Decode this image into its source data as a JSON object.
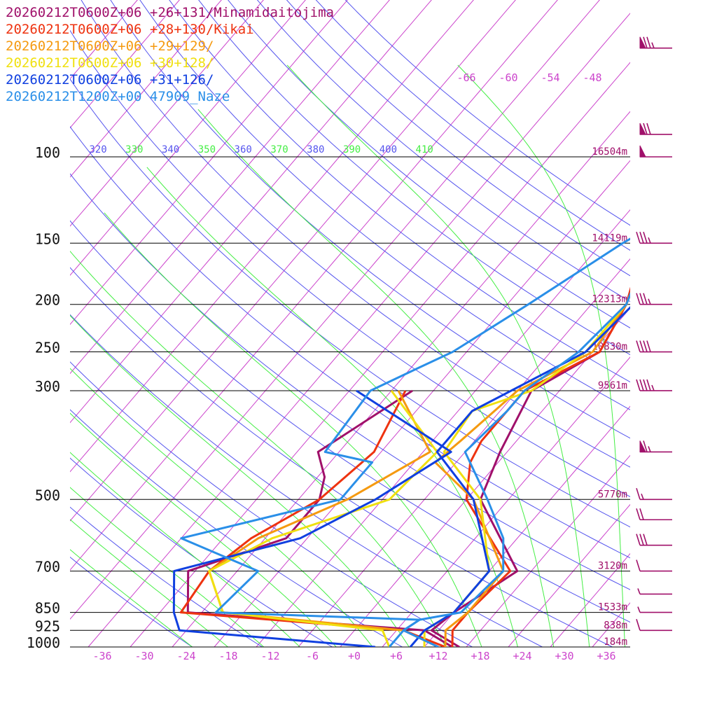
{
  "chart_data": {
    "type": "line",
    "subtype": "skew-T log-P sounding",
    "xlabel": "",
    "ylabel": "",
    "x_unit": "°C",
    "pressure_levels": [
      100,
      150,
      200,
      250,
      300,
      500,
      700,
      850,
      925,
      1000
    ],
    "pressure_labels": [
      "100",
      "150",
      "200",
      "250",
      "300",
      "500",
      "700",
      "850",
      "925",
      "1000"
    ],
    "height_labels": [
      {
        "p": 100,
        "text": "16504m"
      },
      {
        "p": 150,
        "text": "14119m"
      },
      {
        "p": 200,
        "text": "12313m"
      },
      {
        "p": 250,
        "text": "10830m"
      },
      {
        "p": 300,
        "text": "9561m"
      },
      {
        "p": 500,
        "text": "5770m"
      },
      {
        "p": 700,
        "text": "3120m"
      },
      {
        "p": 850,
        "text": "1533m"
      },
      {
        "p": 925,
        "text": "838m"
      },
      {
        "p": 1000,
        "text": "184m"
      }
    ],
    "temp_ticks": [
      -36,
      -30,
      -24,
      -18,
      -12,
      -6,
      0,
      6,
      12,
      18,
      24,
      30,
      36
    ],
    "temp_tick_labels": [
      "-36",
      "-30",
      "-24",
      "-18",
      "-12",
      "-6",
      "+0",
      "+6",
      "+12",
      "+18",
      "+24",
      "+30",
      "+36"
    ],
    "upper_iso_labels": [
      "-66",
      "-60",
      "-54",
      "-48"
    ],
    "theta_labels": [
      {
        "text": "320",
        "color": "#5555ee"
      },
      {
        "text": "330",
        "color": "#44ee44"
      },
      {
        "text": "340",
        "color": "#5555ee"
      },
      {
        "text": "350",
        "color": "#44ee44"
      },
      {
        "text": "360",
        "color": "#5555ee"
      },
      {
        "text": "370",
        "color": "#44ee44"
      },
      {
        "text": "380",
        "color": "#5555ee"
      },
      {
        "text": "390",
        "color": "#44ee44"
      },
      {
        "text": "400",
        "color": "#5555ee"
      },
      {
        "text": "410",
        "color": "#44ee44"
      }
    ],
    "series": [
      {
        "name": "20260212T0600Z+06 +26+131/Minamidaitojima",
        "color": "#a0106a",
        "temperature": [
          [
            1000,
            15
          ],
          [
            925,
            9
          ],
          [
            850,
            10
          ],
          [
            700,
            14
          ],
          [
            500,
            0
          ],
          [
            400,
            -3
          ],
          [
            300,
            -6
          ],
          [
            250,
            -1
          ],
          [
            200,
            -3
          ],
          [
            150,
            -8
          ],
          [
            100,
            -10
          ],
          [
            80,
            3
          ],
          [
            70,
            24
          ]
        ],
        "dewpoint": [
          [
            1000,
            14
          ],
          [
            925,
            8
          ],
          [
            850,
            -28
          ],
          [
            700,
            -33
          ],
          [
            600,
            -23
          ],
          [
            500,
            -23
          ],
          [
            450,
            -25
          ],
          [
            400,
            -29
          ],
          [
            300,
            -23
          ]
        ]
      },
      {
        "name": "20260212T0600Z+06 +28+130/Kikai",
        "color": "#ee3310",
        "temperature": [
          [
            1000,
            14
          ],
          [
            925,
            12
          ],
          [
            850,
            12
          ],
          [
            700,
            13
          ],
          [
            500,
            -2
          ],
          [
            420,
            -6
          ],
          [
            380,
            -7
          ],
          [
            300,
            -7
          ],
          [
            250,
            -1
          ],
          [
            200,
            -3
          ],
          [
            150,
            -8
          ],
          [
            100,
            -8
          ],
          [
            80,
            8
          ],
          [
            70,
            27
          ]
        ],
        "dewpoint": [
          [
            1000,
            13
          ],
          [
            925,
            5
          ],
          [
            850,
            -29
          ],
          [
            700,
            -30
          ],
          [
            600,
            -28
          ],
          [
            500,
            -23
          ],
          [
            400,
            -21
          ],
          [
            300,
            -24
          ]
        ]
      },
      {
        "name": "20260212T0600Z+06 +29+129/",
        "color": "#f59a10",
        "temperature": [
          [
            1000,
            13
          ],
          [
            925,
            11
          ],
          [
            850,
            12
          ],
          [
            700,
            12
          ],
          [
            500,
            -1
          ],
          [
            420,
            -11
          ],
          [
            380,
            -10
          ],
          [
            300,
            -8
          ],
          [
            250,
            -2
          ],
          [
            200,
            -3
          ],
          [
            150,
            -7
          ],
          [
            100,
            -4
          ],
          [
            80,
            10
          ],
          [
            70,
            30
          ]
        ],
        "dewpoint": [
          [
            1000,
            12
          ],
          [
            925,
            5
          ],
          [
            850,
            -23
          ],
          [
            700,
            -30
          ],
          [
            600,
            -27
          ],
          [
            500,
            -19
          ],
          [
            400,
            -13
          ],
          [
            300,
            -25
          ]
        ]
      },
      {
        "name": "20260212T0600Z+06 +30+128/",
        "color": "#f0e010",
        "temperature": [
          [
            1000,
            10
          ],
          [
            925,
            8
          ],
          [
            850,
            10
          ],
          [
            700,
            10
          ],
          [
            500,
            0
          ],
          [
            400,
            -11
          ],
          [
            330,
            -12
          ],
          [
            300,
            -6
          ],
          [
            250,
            -3
          ],
          [
            200,
            -3
          ],
          [
            150,
            -7
          ],
          [
            100,
            -2
          ],
          [
            80,
            12
          ],
          [
            70,
            30
          ]
        ],
        "dewpoint": [
          [
            1000,
            5
          ],
          [
            925,
            2
          ],
          [
            850,
            -23
          ],
          [
            700,
            -30
          ],
          [
            600,
            -25
          ],
          [
            500,
            -13
          ],
          [
            400,
            -12
          ],
          [
            300,
            -26
          ]
        ]
      },
      {
        "name": "20260212T0600Z+06 +31+126/",
        "color": "#1040e0",
        "temperature": [
          [
            1000,
            8
          ],
          [
            925,
            8
          ],
          [
            850,
            10
          ],
          [
            700,
            10
          ],
          [
            500,
            -1
          ],
          [
            400,
            -12
          ],
          [
            330,
            -12
          ],
          [
            250,
            -3
          ],
          [
            200,
            -2
          ],
          [
            150,
            -5
          ],
          [
            130,
            -5
          ],
          [
            100,
            2
          ],
          [
            80,
            12
          ],
          [
            70,
            32
          ]
        ],
        "dewpoint": [
          [
            1000,
            3
          ],
          [
            925,
            -27
          ],
          [
            850,
            -30
          ],
          [
            700,
            -35
          ],
          [
            600,
            -21
          ],
          [
            500,
            -15
          ],
          [
            400,
            -10
          ],
          [
            300,
            -31
          ]
        ]
      },
      {
        "name": "20260212T1200Z+00 47909_Naze",
        "color": "#2a8fe8",
        "temperature": [
          [
            1000,
            12
          ],
          [
            925,
            5
          ],
          [
            880,
            6
          ],
          [
            850,
            11
          ],
          [
            700,
            12
          ],
          [
            600,
            8
          ],
          [
            500,
            1
          ],
          [
            400,
            -8
          ],
          [
            330,
            -7
          ],
          [
            300,
            -7
          ],
          [
            250,
            -4
          ],
          [
            200,
            -3
          ],
          [
            150,
            -7
          ],
          [
            125,
            -8
          ],
          [
            100,
            -6
          ]
        ],
        "dewpoint": [
          [
            1000,
            5
          ],
          [
            925,
            5
          ],
          [
            880,
            6
          ],
          [
            850,
            -24
          ],
          [
            700,
            -23
          ],
          [
            600,
            -38
          ],
          [
            500,
            -20
          ],
          [
            450,
            -20
          ],
          [
            420,
            -20
          ],
          [
            400,
            -28
          ],
          [
            300,
            -29
          ],
          [
            270,
            -25
          ],
          [
            250,
            -22
          ],
          [
            200,
            -17
          ],
          [
            150,
            -11
          ],
          [
            120,
            -5
          ],
          [
            100,
            0
          ]
        ]
      }
    ],
    "wind_barbs": [
      {
        "p": 60,
        "speed_kt": 75,
        "color": "#a0106a"
      },
      {
        "p": 90,
        "speed_kt": 70,
        "color": "#a0106a"
      },
      {
        "p": 100,
        "speed_kt": 50,
        "color": "#a0106a"
      },
      {
        "p": 150,
        "speed_kt": 35,
        "color": "#a0106a"
      },
      {
        "p": 200,
        "speed_kt": 35,
        "color": "#a0106a"
      },
      {
        "p": 250,
        "speed_kt": 40,
        "color": "#a0106a"
      },
      {
        "p": 300,
        "speed_kt": 45,
        "color": "#a0106a"
      },
      {
        "p": 400,
        "speed_kt": 65,
        "color": "#a0106a"
      },
      {
        "p": 500,
        "speed_kt": 15,
        "color": "#a0106a"
      },
      {
        "p": 550,
        "speed_kt": 20,
        "color": "#a0106a"
      },
      {
        "p": 620,
        "speed_kt": 30,
        "color": "#a0106a"
      },
      {
        "p": 700,
        "speed_kt": 10,
        "color": "#a0106a"
      },
      {
        "p": 780,
        "speed_kt": 5,
        "color": "#a0106a"
      },
      {
        "p": 850,
        "speed_kt": 5,
        "color": "#a0106a"
      },
      {
        "p": 925,
        "speed_kt": 10,
        "color": "#a0106a"
      }
    ],
    "colors": {
      "isobar": "#000000",
      "isotherm": "#cc44cc",
      "dry_adiabat": "#5555ee",
      "moist_adiabat": "#44ee44"
    }
  }
}
